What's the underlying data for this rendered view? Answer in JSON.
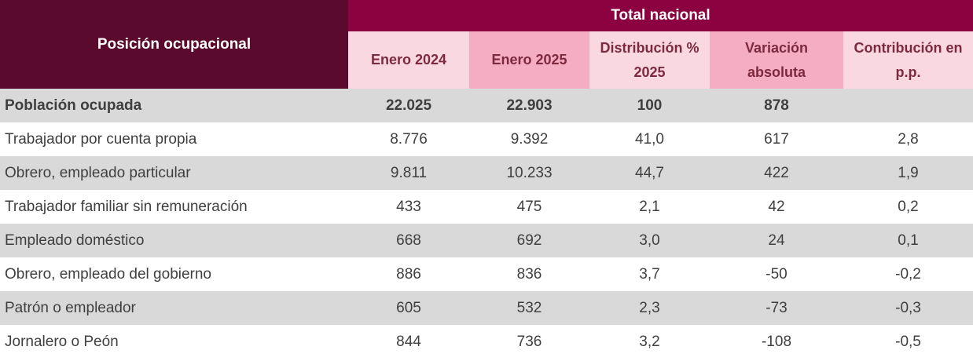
{
  "colors": {
    "dark-maroon": "#5a0a2c",
    "crimson": "#8c0240",
    "pink-light": "#f9d8e1",
    "pink-medium": "#f4adc3",
    "header-text": "#7d2a40",
    "row-grey": "#d9d9d9",
    "text": "#3f3f3f"
  },
  "table": {
    "corner_header": "Posición ocupacional",
    "group_header": "Total nacional",
    "columns": [
      "Enero 2024",
      "Enero 2025",
      "Distribución % 2025",
      "Variación absoluta",
      "Contribución en p.p."
    ],
    "rows": [
      {
        "label": "Población ocupada",
        "bold": true,
        "values": [
          "22.025",
          "22.903",
          "100",
          "878",
          ""
        ]
      },
      {
        "label": "Trabajador por cuenta propia",
        "bold": false,
        "values": [
          "8.776",
          "9.392",
          "41,0",
          "617",
          "2,8"
        ]
      },
      {
        "label": "Obrero, empleado particular",
        "bold": false,
        "values": [
          "9.811",
          "10.233",
          "44,7",
          "422",
          "1,9"
        ]
      },
      {
        "label": "Trabajador familiar sin remuneración",
        "bold": false,
        "values": [
          "433",
          "475",
          "2,1",
          "42",
          "0,2"
        ]
      },
      {
        "label": "Empleado doméstico",
        "bold": false,
        "values": [
          "668",
          "692",
          "3,0",
          "24",
          "0,1"
        ]
      },
      {
        "label": "Obrero, empleado del gobierno",
        "bold": false,
        "values": [
          "886",
          "836",
          "3,7",
          "-50",
          "-0,2"
        ]
      },
      {
        "label": "Patrón o empleador",
        "bold": false,
        "values": [
          "605",
          "532",
          "2,3",
          "-73",
          "-0,3"
        ]
      },
      {
        "label": "Jornalero o Peón",
        "bold": false,
        "values": [
          "844",
          "736",
          "3,2",
          "-108",
          "-0,5"
        ]
      }
    ]
  }
}
